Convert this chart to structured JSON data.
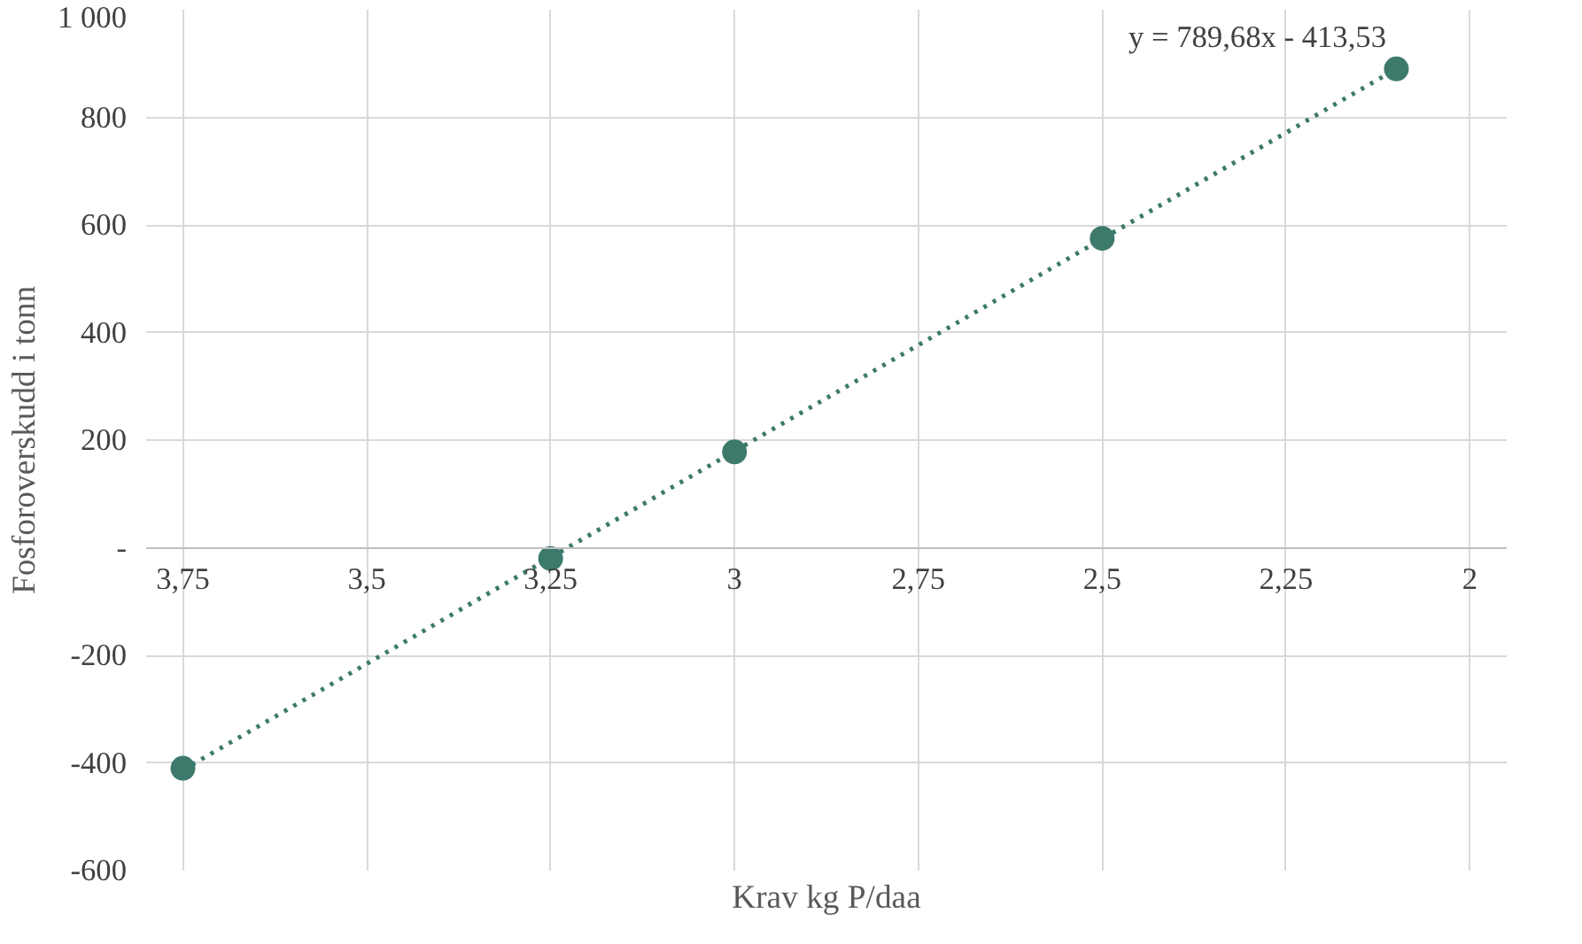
{
  "chart_data": {
    "type": "scatter",
    "xlabel": "Krav kg P/daa",
    "ylabel": "Fosforoverskudd i tonn",
    "x": [
      3.75,
      3.25,
      3.0,
      2.5,
      2.1
    ],
    "series": [
      {
        "color": "#3d7a6c",
        "values": [
          -410,
          -20,
          178,
          575,
          890
        ],
        "marker": "circle"
      },
      {
        "type": "line",
        "color": "#3d7a6c",
        "x": [
          3.75,
          2.1
        ],
        "values": [
          -413,
          890
        ],
        "line_style": "dotted"
      }
    ],
    "xlim": [
      3.8,
      1.95
    ],
    "xticks": [
      {
        "value": 3.75,
        "label": "3,75"
      },
      {
        "value": 3.5,
        "label": "3,5"
      },
      {
        "value": 3.25,
        "label": "3,25"
      },
      3,
      {
        "value": 2.75,
        "label": "2,75"
      },
      {
        "value": 2.5,
        "label": "2,5"
      },
      {
        "value": 2.25,
        "label": "2,25"
      },
      2
    ],
    "ylim": [
      -600,
      1000
    ],
    "yticks": [
      -600,
      -400,
      -200,
      {
        "value": 0,
        "label": "-"
      },
      200,
      400,
      600,
      800,
      {
        "value": 1000,
        "label": "1 000"
      }
    ],
    "grid": true,
    "annotations": [
      "y = 789,68x - 413,53"
    ]
  }
}
